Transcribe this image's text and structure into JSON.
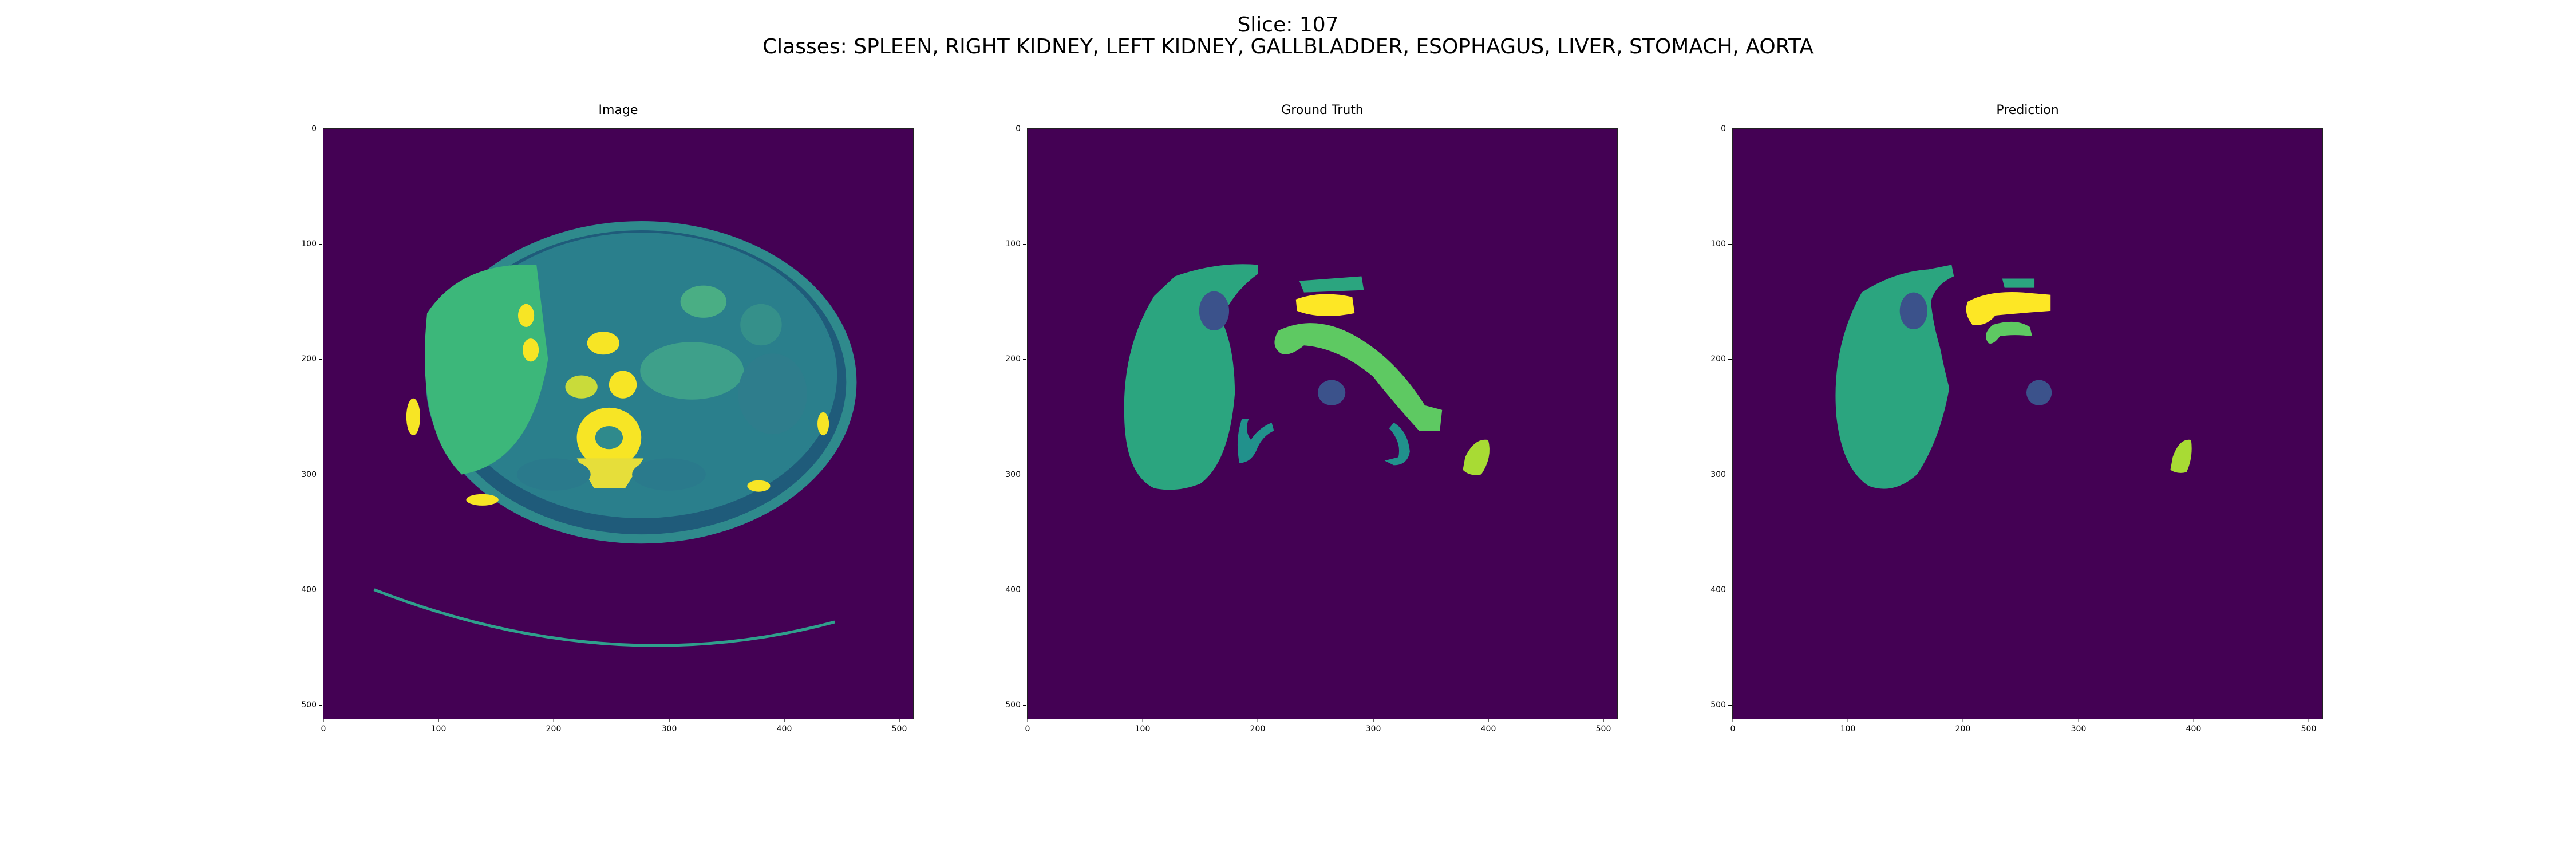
{
  "figure": {
    "title_line1": "Slice: 107",
    "title_line2": "Classes: SPLEEN, RIGHT KIDNEY, LEFT KIDNEY, GALLBLADDER, ESOPHAGUS, LIVER, STOMACH, AORTA"
  },
  "panels": [
    {
      "title": "Image"
    },
    {
      "title": "Ground Truth"
    },
    {
      "title": "Prediction"
    }
  ],
  "axes": {
    "y_ticks": [
      "0",
      "100",
      "200",
      "300",
      "400",
      "500"
    ],
    "x_ticks": [
      "0",
      "100",
      "200",
      "300",
      "400",
      "500"
    ],
    "range": [
      0,
      512
    ]
  },
  "colors": {
    "background": "#440154",
    "liver": "#2ba57f",
    "gallbladder": "#3b528b",
    "stomach": "#5ec962",
    "aorta": "#fde725",
    "kidney_outline": "#21918c",
    "spleen": "#a8db34",
    "ct_tissue": "#2f8a8c",
    "ct_bright": "#f7e525"
  }
}
